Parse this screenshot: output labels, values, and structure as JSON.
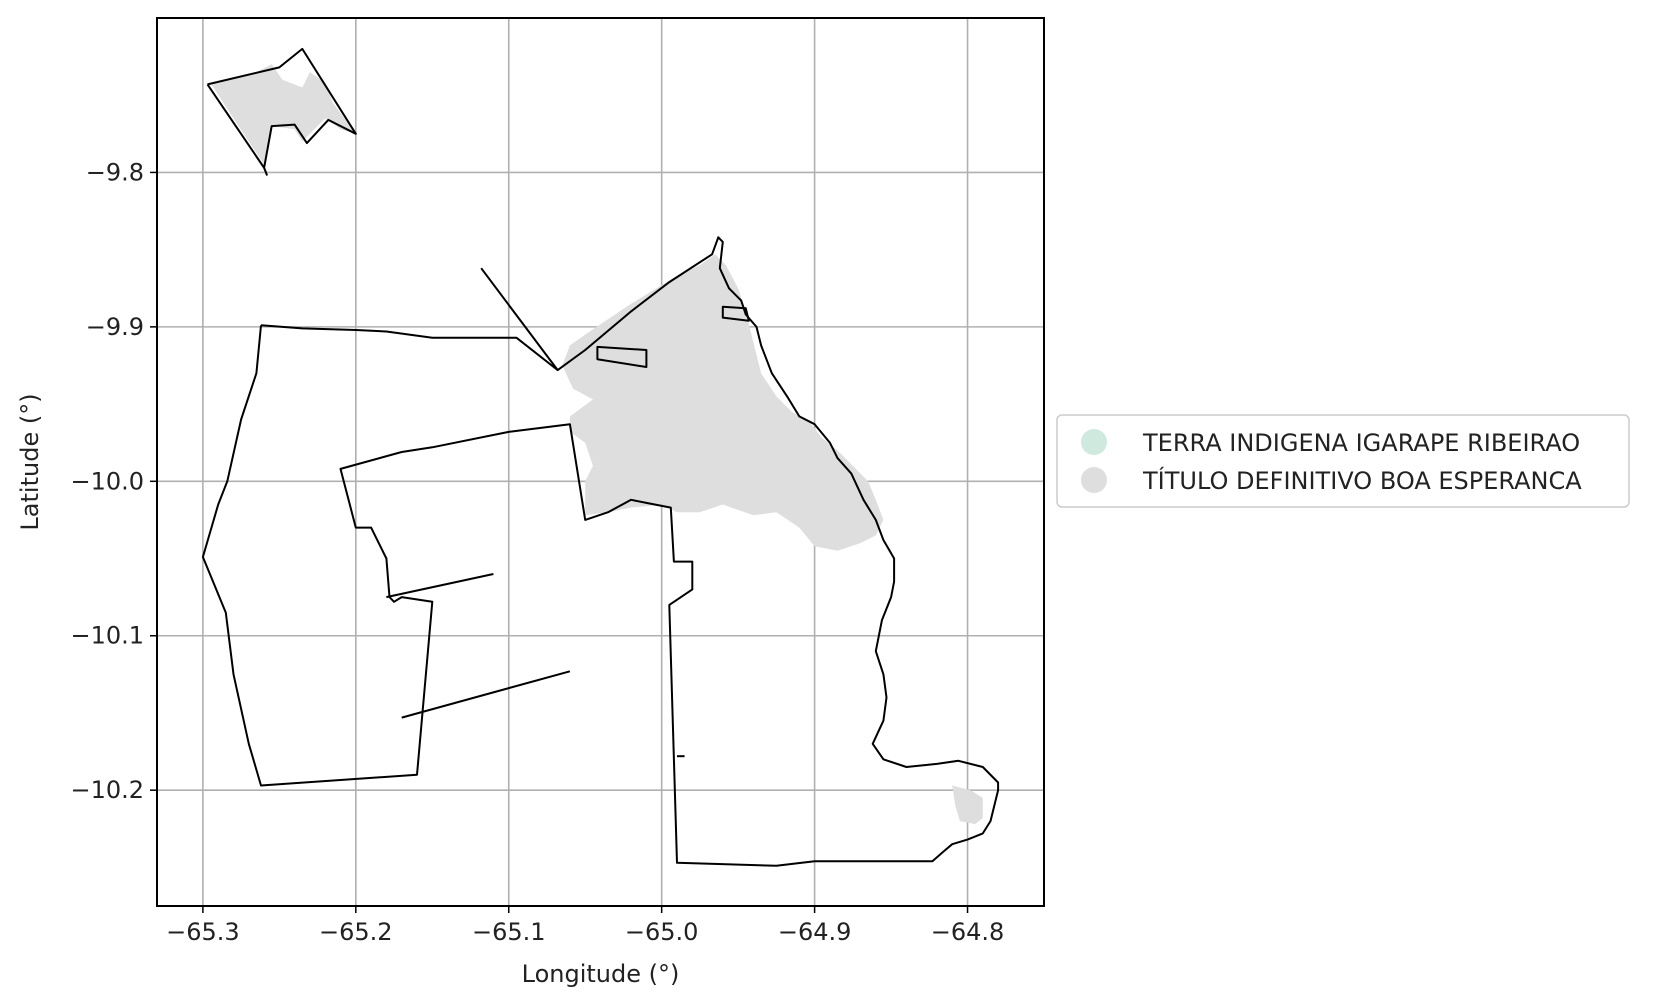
{
  "chart_data": {
    "type": "map",
    "xlabel": "Longitude (°)",
    "ylabel": "Latitude (°)",
    "xlim": [
      -65.33,
      -64.75
    ],
    "ylim": [
      -10.275,
      -9.7
    ],
    "grid": true,
    "xticks": [
      {
        "value": -65.3,
        "label": "−65.3"
      },
      {
        "value": -65.2,
        "label": "−65.2"
      },
      {
        "value": -65.1,
        "label": "−65.1"
      },
      {
        "value": -65.0,
        "label": "−65.0"
      },
      {
        "value": -64.9,
        "label": "−64.9"
      },
      {
        "value": -64.8,
        "label": "−64.8"
      }
    ],
    "yticks": [
      {
        "value": -9.8,
        "label": "−9.8"
      },
      {
        "value": -9.9,
        "label": "−9.9"
      },
      {
        "value": -10.0,
        "label": "−10.0"
      },
      {
        "value": -10.1,
        "label": "−10.1"
      },
      {
        "value": -10.2,
        "label": "−10.2"
      }
    ],
    "legend": {
      "placement": "right",
      "entries": [
        {
          "label": "TERRA INDIGENA IGARAPE RIBEIRAO",
          "color": "#cfe9df"
        },
        {
          "label": "TÍTULO DEFINITIVO BOA ESPERANCA",
          "color": "#dedede"
        }
      ]
    },
    "boundary_color": "#000000",
    "fill_color": "#dedede",
    "fills": [
      {
        "name": "northwest-parcel-fill",
        "coords": [
          [
            -65.295,
            -9.742
          ],
          [
            -65.275,
            -9.738
          ],
          [
            -65.265,
            -9.735
          ],
          [
            -65.255,
            -9.73
          ],
          [
            -65.248,
            -9.74
          ],
          [
            -65.235,
            -9.745
          ],
          [
            -65.23,
            -9.735
          ],
          [
            -65.22,
            -9.742
          ],
          [
            -65.215,
            -9.755
          ],
          [
            -65.2,
            -9.775
          ],
          [
            -65.21,
            -9.772
          ],
          [
            -65.22,
            -9.765
          ],
          [
            -65.235,
            -9.78
          ],
          [
            -65.24,
            -9.772
          ],
          [
            -65.255,
            -9.77
          ],
          [
            -65.26,
            -9.795
          ],
          [
            -65.27,
            -9.78
          ],
          [
            -65.28,
            -9.765
          ]
        ]
      },
      {
        "name": "northeast-strip-fill",
        "coords": [
          [
            -64.965,
            -9.853
          ],
          [
            -64.975,
            -9.86
          ],
          [
            -64.99,
            -9.867
          ],
          [
            -65.005,
            -9.876
          ],
          [
            -65.02,
            -9.885
          ],
          [
            -65.035,
            -9.895
          ],
          [
            -65.05,
            -9.905
          ],
          [
            -65.06,
            -9.912
          ],
          [
            -65.065,
            -9.925
          ],
          [
            -65.058,
            -9.94
          ],
          [
            -65.045,
            -9.947
          ],
          [
            -65.06,
            -9.958
          ],
          [
            -65.06,
            -9.968
          ],
          [
            -65.05,
            -9.975
          ],
          [
            -65.045,
            -9.99
          ],
          [
            -65.05,
            -10.0
          ],
          [
            -65.05,
            -10.022
          ],
          [
            -65.035,
            -10.02
          ],
          [
            -65.02,
            -10.017
          ],
          [
            -65.0,
            -10.015
          ],
          [
            -64.99,
            -10.02
          ],
          [
            -64.975,
            -10.02
          ],
          [
            -64.96,
            -10.015
          ],
          [
            -64.94,
            -10.022
          ],
          [
            -64.925,
            -10.02
          ],
          [
            -64.91,
            -10.03
          ],
          [
            -64.9,
            -10.042
          ],
          [
            -64.885,
            -10.045
          ],
          [
            -64.87,
            -10.04
          ],
          [
            -64.86,
            -10.035
          ],
          [
            -64.855,
            -10.025
          ],
          [
            -64.86,
            -10.012
          ],
          [
            -64.865,
            -10.0
          ],
          [
            -64.875,
            -9.99
          ],
          [
            -64.885,
            -9.98
          ],
          [
            -64.895,
            -9.972
          ],
          [
            -64.903,
            -9.962
          ],
          [
            -64.915,
            -9.955
          ],
          [
            -64.925,
            -9.945
          ],
          [
            -64.935,
            -9.93
          ],
          [
            -64.94,
            -9.91
          ],
          [
            -64.945,
            -9.89
          ],
          [
            -64.95,
            -9.875
          ],
          [
            -64.958,
            -9.86
          ]
        ]
      },
      {
        "name": "southeast-small-fill",
        "coords": [
          [
            -64.81,
            -10.197
          ],
          [
            -64.798,
            -10.2
          ],
          [
            -64.79,
            -10.205
          ],
          [
            -64.79,
            -10.218
          ],
          [
            -64.795,
            -10.222
          ],
          [
            -64.805,
            -10.22
          ],
          [
            -64.808,
            -10.21
          ]
        ]
      }
    ],
    "boundaries": [
      {
        "name": "northwest-parcel-boundary",
        "closed": false,
        "coords": [
          [
            -65.297,
            -9.743
          ],
          [
            -65.25,
            -9.732
          ],
          [
            -65.235,
            -9.72
          ],
          [
            -65.2,
            -9.775
          ],
          [
            -65.218,
            -9.766
          ],
          [
            -65.232,
            -9.781
          ],
          [
            -65.24,
            -9.769
          ],
          [
            -65.255,
            -9.77
          ],
          [
            -65.26,
            -9.797
          ],
          [
            -65.258,
            -9.802
          ]
        ]
      },
      {
        "name": "northwest-parcel-left-edge",
        "closed": false,
        "coords": [
          [
            -65.297,
            -9.743
          ],
          [
            -65.26,
            -9.797
          ]
        ]
      },
      {
        "name": "west-parcel-boundary",
        "closed": false,
        "coords": [
          [
            -65.262,
            -9.899
          ],
          [
            -65.235,
            -9.901
          ],
          [
            -65.2,
            -9.902
          ],
          [
            -65.18,
            -9.903
          ],
          [
            -65.15,
            -9.907
          ],
          [
            -65.12,
            -9.907
          ],
          [
            -65.095,
            -9.907
          ],
          [
            -65.068,
            -9.928
          ],
          [
            -65.05,
            -9.915
          ],
          [
            -65.02,
            -9.89
          ],
          [
            -64.995,
            -9.871
          ],
          [
            -64.967,
            -9.853
          ],
          [
            -64.963,
            -9.842
          ],
          [
            -64.96,
            -9.845
          ],
          [
            -64.962,
            -9.862
          ],
          [
            -64.956,
            -9.875
          ],
          [
            -64.948,
            -9.883
          ],
          [
            -64.945,
            -9.892
          ],
          [
            -64.938,
            -9.9
          ],
          [
            -64.935,
            -9.912
          ],
          [
            -64.928,
            -9.93
          ],
          [
            -64.918,
            -9.945
          ],
          [
            -64.91,
            -9.958
          ],
          [
            -64.9,
            -9.963
          ],
          [
            -64.89,
            -9.975
          ],
          [
            -64.885,
            -9.985
          ],
          [
            -64.876,
            -9.995
          ],
          [
            -64.868,
            -10.012
          ],
          [
            -64.86,
            -10.025
          ],
          [
            -64.855,
            -10.038
          ],
          [
            -64.848,
            -10.05
          ],
          [
            -64.848,
            -10.065
          ],
          [
            -64.85,
            -10.075
          ],
          [
            -64.856,
            -10.09
          ],
          [
            -64.86,
            -10.11
          ],
          [
            -64.855,
            -10.125
          ],
          [
            -64.853,
            -10.14
          ],
          [
            -64.855,
            -10.155
          ],
          [
            -64.862,
            -10.17
          ],
          [
            -64.855,
            -10.18
          ],
          [
            -64.84,
            -10.185
          ],
          [
            -64.82,
            -10.183
          ],
          [
            -64.806,
            -10.181
          ],
          [
            -64.79,
            -10.185
          ],
          [
            -64.78,
            -10.195
          ],
          [
            -64.78,
            -10.2
          ],
          [
            -64.785,
            -10.22
          ],
          [
            -64.79,
            -10.228
          ],
          [
            -64.8,
            -10.232
          ],
          [
            -64.81,
            -10.235
          ],
          [
            -64.816,
            -10.24
          ],
          [
            -64.823,
            -10.246
          ],
          [
            -64.9,
            -10.246
          ],
          [
            -64.925,
            -10.249
          ],
          [
            -64.99,
            -10.247
          ],
          [
            -64.995,
            -10.08
          ],
          [
            -64.98,
            -10.07
          ],
          [
            -64.98,
            -10.052
          ],
          [
            -64.992,
            -10.052
          ],
          [
            -64.994,
            -10.017
          ],
          [
            -65.01,
            -10.014
          ],
          [
            -65.02,
            -10.012
          ],
          [
            -65.035,
            -10.02
          ],
          [
            -65.05,
            -10.025
          ],
          [
            -65.06,
            -9.963
          ],
          [
            -65.1,
            -9.968
          ],
          [
            -65.15,
            -9.978
          ],
          [
            -65.17,
            -9.981
          ],
          [
            -65.21,
            -9.992
          ],
          [
            -65.2,
            -10.03
          ],
          [
            -65.19,
            -10.03
          ],
          [
            -65.18,
            -10.05
          ],
          [
            -65.178,
            -10.075
          ],
          [
            -65.175,
            -10.078
          ],
          [
            -65.17,
            -10.075
          ],
          [
            -65.15,
            -10.078
          ],
          [
            -65.16,
            -10.19
          ],
          [
            -65.262,
            -10.197
          ],
          [
            -65.27,
            -10.17
          ],
          [
            -65.28,
            -10.125
          ],
          [
            -65.285,
            -10.085
          ],
          [
            -65.3,
            -10.049
          ],
          [
            -65.29,
            -10.015
          ],
          [
            -65.284,
            -10.0
          ],
          [
            -65.275,
            -9.96
          ],
          [
            -65.265,
            -9.93
          ],
          [
            -65.262,
            -9.899
          ]
        ]
      },
      {
        "name": "northern-diagonal-road",
        "closed": false,
        "coords": [
          [
            -65.118,
            -9.862
          ],
          [
            -65.068,
            -9.928
          ]
        ]
      },
      {
        "name": "small-rectangle-a",
        "closed": true,
        "coords": [
          [
            -65.042,
            -9.913
          ],
          [
            -65.01,
            -9.915
          ],
          [
            -65.01,
            -9.926
          ],
          [
            -65.042,
            -9.921
          ]
        ]
      },
      {
        "name": "small-rectangle-b",
        "closed": true,
        "coords": [
          [
            -64.96,
            -9.887
          ],
          [
            -64.945,
            -9.888
          ],
          [
            -64.943,
            -9.896
          ],
          [
            -64.96,
            -9.894
          ]
        ]
      },
      {
        "name": "middle-spur-road",
        "closed": false,
        "coords": [
          [
            -65.18,
            -10.075
          ],
          [
            -65.11,
            -10.06
          ]
        ]
      },
      {
        "name": "lower-spur-road",
        "closed": false,
        "coords": [
          [
            -65.17,
            -10.153
          ],
          [
            -65.06,
            -10.123
          ]
        ]
      },
      {
        "name": "south-tick",
        "closed": false,
        "coords": [
          [
            -64.99,
            -10.178
          ],
          [
            -64.985,
            -10.178
          ]
        ]
      }
    ]
  }
}
